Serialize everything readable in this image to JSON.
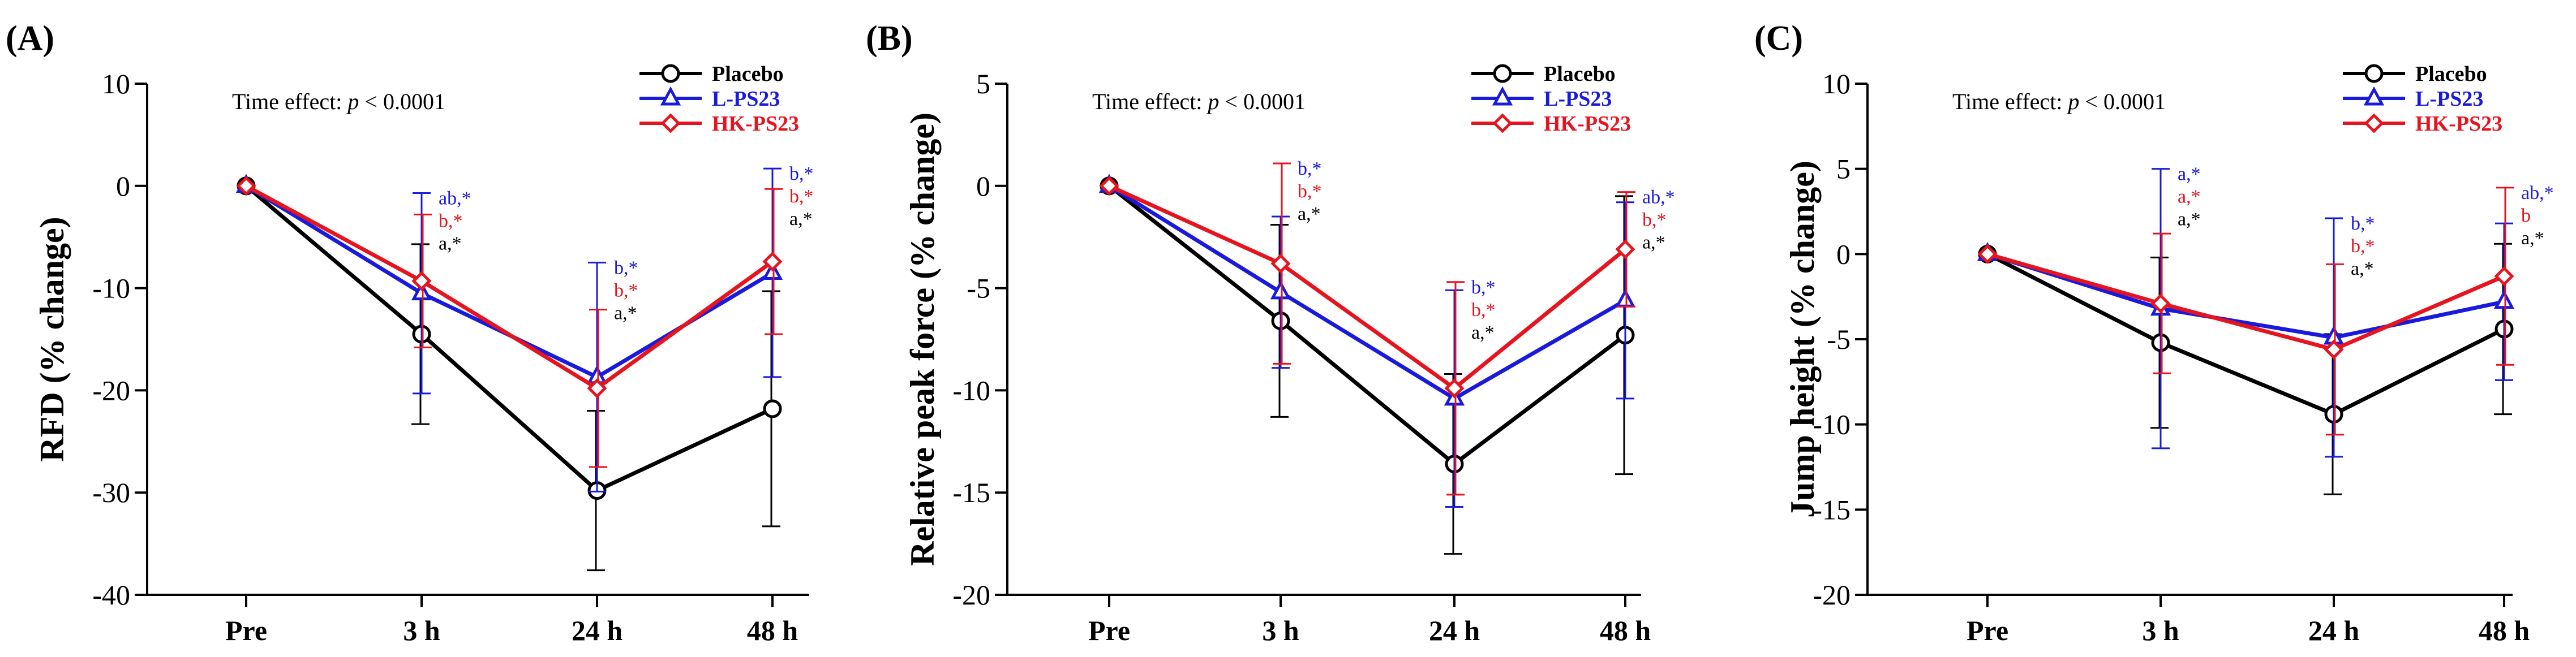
{
  "figure": {
    "series_colors": {
      "Placebo": "#000000",
      "L-PS23": "#1a1adc",
      "HK-PS23": "#e6141e"
    },
    "marker_names": {
      "Placebo": "circle-marker",
      "L-PS23": "triangle-marker",
      "HK-PS23": "diamond-marker"
    }
  },
  "chart_data": [
    {
      "type": "line",
      "panel": "(A)",
      "ylabel": "RFD (% change)",
      "annotation_prefix": "Time effect: ",
      "annotation_p": "p",
      "annotation_suffix": " < 0.0001",
      "categories": [
        "Pre",
        "3 h",
        "24 h",
        "48 h"
      ],
      "ylim": [
        -40,
        10
      ],
      "yticks": [
        10,
        0,
        -10,
        -20,
        -30,
        -40
      ],
      "ytick_labels": [
        "10",
        "0",
        "-10",
        "-20",
        "-30",
        "-40"
      ],
      "legend": [
        "Placebo",
        "L-PS23",
        "HK-PS23"
      ],
      "legend_position": "top-right",
      "series": [
        {
          "name": "Placebo",
          "values": [
            0,
            -14.5,
            -29.8,
            -21.8
          ],
          "errors": [
            0,
            8.8,
            7.8,
            11.5
          ],
          "sig": [
            null,
            "a,*",
            "a,*",
            "a,*"
          ]
        },
        {
          "name": "L-PS23",
          "values": [
            0,
            -10.5,
            -18.7,
            -8.5
          ],
          "errors": [
            0,
            9.8,
            11.2,
            10.2
          ],
          "sig": [
            null,
            "ab,*",
            "b,*",
            "b,*"
          ]
        },
        {
          "name": "HK-PS23",
          "values": [
            0,
            -9.3,
            -19.8,
            -7.4
          ],
          "errors": [
            0,
            6.5,
            7.7,
            7.1
          ],
          "sig": [
            null,
            "b,*",
            "b,*",
            "b,*"
          ]
        }
      ]
    },
    {
      "type": "line",
      "panel": "(B)",
      "ylabel": "Relative peak force (% change)",
      "annotation_prefix": "Time effect: ",
      "annotation_p": "p",
      "annotation_suffix": " < 0.0001",
      "categories": [
        "Pre",
        "3 h",
        "24 h",
        "48 h"
      ],
      "ylim": [
        -20,
        5
      ],
      "yticks": [
        5,
        0,
        -5,
        -10,
        -15,
        -20
      ],
      "ytick_labels": [
        "5",
        "0",
        "-5",
        "-10",
        "-15",
        "-20"
      ],
      "legend": [
        "Placebo",
        "L-PS23",
        "HK-PS23"
      ],
      "legend_position": "top-right",
      "series": [
        {
          "name": "Placebo",
          "values": [
            0,
            -6.6,
            -13.6,
            -7.3
          ],
          "errors": [
            0,
            4.7,
            4.4,
            6.8
          ],
          "sig": [
            null,
            "a,*",
            "a,*",
            "a,*"
          ]
        },
        {
          "name": "L-PS23",
          "values": [
            0,
            -5.2,
            -10.4,
            -5.6
          ],
          "errors": [
            0,
            3.7,
            5.3,
            4.8
          ],
          "sig": [
            null,
            "b,*",
            "b,*",
            "ab,*"
          ]
        },
        {
          "name": "HK-PS23",
          "values": [
            0,
            -3.8,
            -9.9,
            -3.1
          ],
          "errors": [
            0,
            4.9,
            5.2,
            2.8
          ],
          "sig": [
            null,
            "b,*",
            "b,*",
            "b,*"
          ]
        }
      ]
    },
    {
      "type": "line",
      "panel": "(C)",
      "ylabel": "Jump height (% change)",
      "annotation_prefix": "Time effect: ",
      "annotation_p": "p",
      "annotation_suffix": " < 0.0001",
      "categories": [
        "Pre",
        "3 h",
        "24 h",
        "48 h"
      ],
      "ylim": [
        -20,
        10
      ],
      "yticks": [
        10,
        5,
        0,
        -5,
        -10,
        -15,
        -20
      ],
      "ytick_labels": [
        "10",
        "5",
        "0",
        "-5",
        "-10",
        "-15",
        "-20"
      ],
      "legend": [
        "Placebo",
        "L-PS23",
        "HK-PS23"
      ],
      "legend_position": "top-right",
      "series": [
        {
          "name": "Placebo",
          "values": [
            0,
            -5.2,
            -9.4,
            -4.4
          ],
          "errors": [
            0,
            5.0,
            4.7,
            5.0
          ],
          "sig": [
            null,
            "a,*",
            "a,*",
            "a,*"
          ]
        },
        {
          "name": "L-PS23",
          "values": [
            0,
            -3.2,
            -4.9,
            -2.8
          ],
          "errors": [
            0,
            8.2,
            7.0,
            4.6
          ],
          "sig": [
            null,
            "a,*",
            "b,*",
            "ab,*"
          ]
        },
        {
          "name": "HK-PS23",
          "values": [
            0,
            -2.9,
            -5.6,
            -1.3
          ],
          "errors": [
            0,
            4.1,
            5.0,
            5.2
          ],
          "sig": [
            null,
            "a,*",
            "b,*",
            "b"
          ]
        }
      ]
    }
  ]
}
